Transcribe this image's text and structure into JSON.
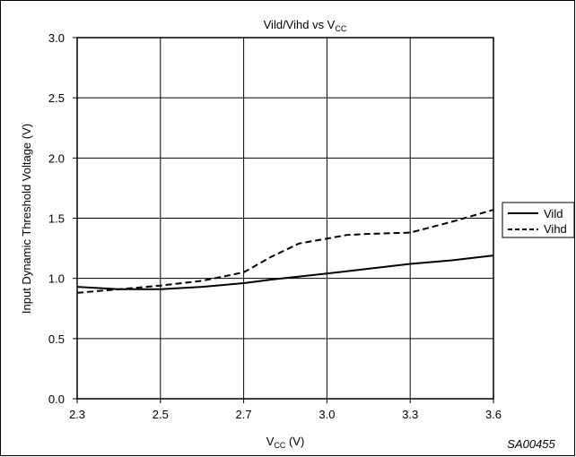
{
  "chart_data": {
    "type": "line",
    "title": "Vild/Vihd vs V",
    "title_sub": "CC",
    "xlabel": "V",
    "xlabel_sub": "CC",
    "xlabel_unit": " (V)",
    "ylabel": "Input Dynamic Threshold Voltage (V)",
    "figure_code": "SA00455",
    "x_ticks": [
      "2.3",
      "2.5",
      "2.7",
      "3.0",
      "3.3",
      "3.6"
    ],
    "y_ticks": [
      "0.0",
      "0.5",
      "1.0",
      "1.5",
      "2.0",
      "2.5",
      "3.0"
    ],
    "x_tick_values": [
      2.3,
      2.5,
      2.7,
      3.0,
      3.3,
      3.6
    ],
    "x_axis_note": "tick spacing is uniform (non-linear scale)",
    "ylim": [
      0,
      3
    ],
    "grid": true,
    "legend_position": "right-outside",
    "series": [
      {
        "name": "Vild",
        "style": "solid",
        "x": [
          2.3,
          2.4,
          2.5,
          2.6,
          2.7,
          2.8,
          3.0,
          3.15,
          3.3,
          3.45,
          3.6
        ],
        "y": [
          0.93,
          0.91,
          0.91,
          0.93,
          0.96,
          0.99,
          1.04,
          1.08,
          1.12,
          1.15,
          1.19
        ]
      },
      {
        "name": "Vihd",
        "style": "dashed",
        "x": [
          2.3,
          2.4,
          2.5,
          2.6,
          2.7,
          2.8,
          2.9,
          3.0,
          3.07,
          3.15,
          3.3,
          3.45,
          3.6
        ],
        "y": [
          0.88,
          0.91,
          0.94,
          0.98,
          1.05,
          1.18,
          1.29,
          1.33,
          1.36,
          1.37,
          1.38,
          1.47,
          1.57
        ]
      }
    ]
  }
}
